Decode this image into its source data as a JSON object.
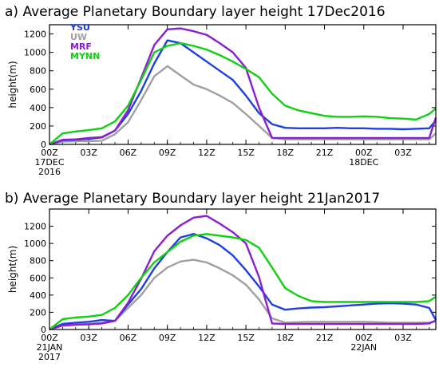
{
  "chart_data": [
    {
      "type": "line",
      "title": "a)  Average Planetary Boundary layer height 17Dec2016",
      "ylabel": "height(m)",
      "ylim": [
        0,
        1300
      ],
      "yticks": [
        0,
        200,
        400,
        600,
        800,
        1000,
        1200
      ],
      "xlim": [
        0,
        29.5
      ],
      "x_tick_labels": [
        {
          "x": 0,
          "lines": [
            "00Z",
            "17DEC",
            "2016"
          ]
        },
        {
          "x": 3,
          "lines": [
            "03Z"
          ]
        },
        {
          "x": 6,
          "lines": [
            "06Z"
          ]
        },
        {
          "x": 9,
          "lines": [
            "09Z"
          ]
        },
        {
          "x": 12,
          "lines": [
            "12Z"
          ]
        },
        {
          "x": 15,
          "lines": [
            "15Z"
          ]
        },
        {
          "x": 18,
          "lines": [
            "18Z"
          ]
        },
        {
          "x": 21,
          "lines": [
            "21Z"
          ]
        },
        {
          "x": 24,
          "lines": [
            "00Z",
            "18DEC"
          ]
        },
        {
          "x": 27,
          "lines": [
            "03Z"
          ]
        }
      ],
      "x": [
        0,
        1,
        2,
        3,
        4,
        5,
        6,
        7,
        8,
        9,
        10,
        11,
        12,
        13,
        14,
        15,
        16,
        17,
        18,
        19,
        20,
        21,
        22,
        23,
        24,
        25,
        26,
        27,
        28,
        29,
        29.5
      ],
      "series": [
        {
          "name": "YSU",
          "color": "#1f3fe0",
          "values": [
            0,
            45,
            50,
            60,
            75,
            150,
            330,
            580,
            880,
            1130,
            1100,
            1000,
            900,
            800,
            700,
            530,
            340,
            220,
            180,
            175,
            175,
            175,
            180,
            175,
            175,
            170,
            170,
            165,
            170,
            175,
            260
          ]
        },
        {
          "name": "UW",
          "color": "#a0a0a0",
          "values": [
            0,
            30,
            35,
            35,
            40,
            110,
            240,
            480,
            740,
            850,
            750,
            650,
            600,
            530,
            450,
            330,
            200,
            70,
            55,
            55,
            55,
            55,
            55,
            55,
            55,
            55,
            55,
            55,
            55,
            55,
            120
          ]
        },
        {
          "name": "MRF",
          "color": "#8b1fd0",
          "values": [
            0,
            50,
            55,
            70,
            80,
            150,
            370,
            720,
            1080,
            1250,
            1260,
            1230,
            1190,
            1100,
            1000,
            830,
            400,
            70,
            70,
            70,
            70,
            70,
            70,
            70,
            70,
            70,
            70,
            70,
            70,
            70,
            290
          ]
        },
        {
          "name": "MYNN",
          "color": "#11d011",
          "values": [
            0,
            120,
            140,
            155,
            175,
            250,
            420,
            700,
            1000,
            1070,
            1100,
            1070,
            1030,
            970,
            900,
            820,
            730,
            550,
            420,
            370,
            340,
            310,
            300,
            300,
            305,
            300,
            285,
            280,
            270,
            330,
            390
          ]
        }
      ]
    },
    {
      "type": "line",
      "title": "b)  Average Planetary Boundary layer height 21Jan2017",
      "ylabel": "height(m)",
      "ylim": [
        0,
        1400
      ],
      "yticks": [
        0,
        200,
        400,
        600,
        800,
        1000,
        1200
      ],
      "xlim": [
        0,
        29.5
      ],
      "x_tick_labels": [
        {
          "x": 0,
          "lines": [
            "00Z",
            "21JAN",
            "2017"
          ]
        },
        {
          "x": 3,
          "lines": [
            "03Z"
          ]
        },
        {
          "x": 6,
          "lines": [
            "06Z"
          ]
        },
        {
          "x": 9,
          "lines": [
            "09Z"
          ]
        },
        {
          "x": 12,
          "lines": [
            "12Z"
          ]
        },
        {
          "x": 15,
          "lines": [
            "15Z"
          ]
        },
        {
          "x": 18,
          "lines": [
            "18Z"
          ]
        },
        {
          "x": 21,
          "lines": [
            "21Z"
          ]
        },
        {
          "x": 24,
          "lines": [
            "00Z",
            "22JAN"
          ]
        },
        {
          "x": 27,
          "lines": [
            "03Z"
          ]
        }
      ],
      "x": [
        0,
        1,
        2,
        3,
        4,
        5,
        6,
        7,
        8,
        9,
        10,
        11,
        12,
        13,
        14,
        15,
        16,
        17,
        18,
        19,
        20,
        21,
        22,
        23,
        24,
        25,
        26,
        27,
        28,
        29,
        29.5
      ],
      "series": [
        {
          "name": "YSU",
          "color": "#1f3fe0",
          "values": [
            0,
            65,
            80,
            90,
            110,
            100,
            290,
            470,
            710,
            900,
            1070,
            1110,
            1060,
            980,
            860,
            690,
            500,
            290,
            230,
            245,
            255,
            260,
            270,
            280,
            290,
            300,
            305,
            300,
            290,
            250,
            110
          ]
        },
        {
          "name": "UW",
          "color": "#a0a0a0",
          "values": [
            0,
            50,
            60,
            65,
            80,
            100,
            250,
            400,
            600,
            720,
            790,
            810,
            780,
            710,
            630,
            520,
            350,
            130,
            80,
            85,
            90,
            90,
            90,
            90,
            90,
            85,
            80,
            80,
            80,
            80,
            95
          ]
        },
        {
          "name": "MRF",
          "color": "#8b1fd0",
          "values": [
            0,
            45,
            55,
            60,
            70,
            100,
            310,
            590,
            910,
            1090,
            1210,
            1300,
            1320,
            1230,
            1130,
            1000,
            610,
            70,
            65,
            65,
            65,
            65,
            65,
            65,
            65,
            65,
            65,
            65,
            65,
            70,
            105
          ]
        },
        {
          "name": "MYNN",
          "color": "#11d011",
          "values": [
            0,
            120,
            140,
            150,
            170,
            250,
            400,
            600,
            780,
            900,
            1020,
            1090,
            1110,
            1090,
            1070,
            1040,
            950,
            720,
            480,
            390,
            330,
            320,
            320,
            320,
            320,
            320,
            320,
            320,
            320,
            330,
            380
          ]
        }
      ]
    }
  ]
}
